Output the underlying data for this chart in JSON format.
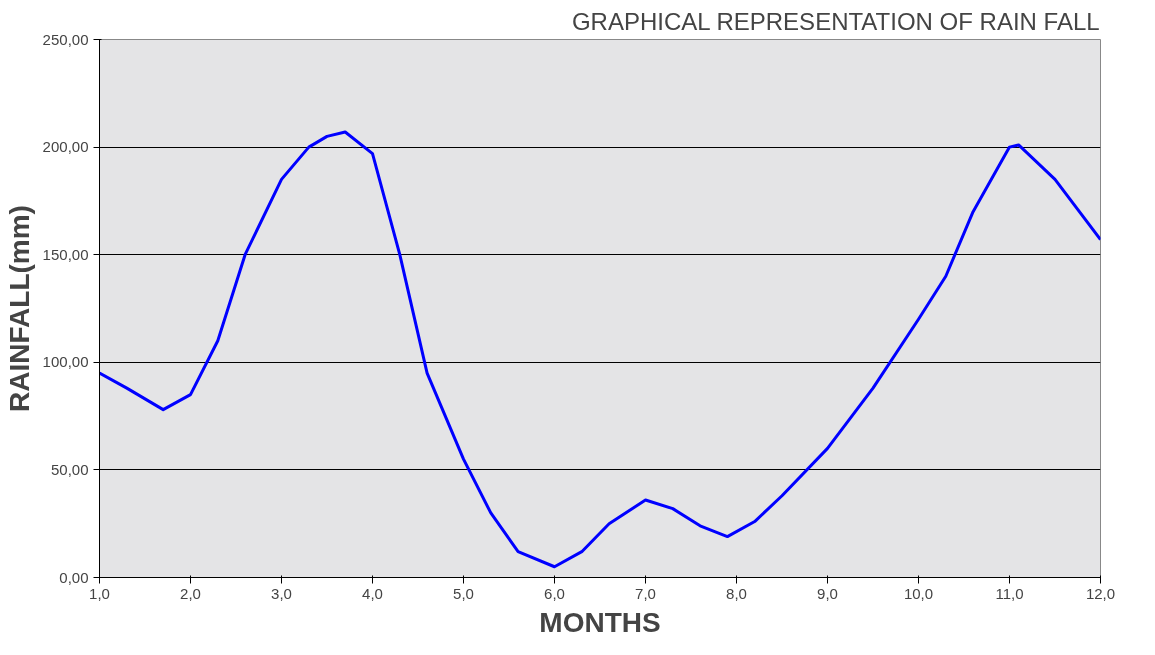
{
  "chart_data": {
    "type": "line",
    "title": "GRAPHICAL REPRESENTATION OF RAIN FALL",
    "xlabel": "MONTHS",
    "ylabel": "RAINFALL(mm)",
    "x": [
      1.0,
      1.3,
      1.7,
      2.0,
      2.3,
      2.6,
      3.0,
      3.3,
      3.5,
      3.7,
      4.0,
      4.3,
      4.6,
      5.0,
      5.3,
      5.6,
      6.0,
      6.3,
      6.6,
      7.0,
      7.3,
      7.6,
      7.9,
      8.2,
      8.5,
      9.0,
      9.5,
      10.0,
      10.3,
      10.6,
      11.0,
      11.1,
      11.5,
      12.0
    ],
    "series": [
      {
        "color": "#0000ff",
        "values": [
          95,
          88,
          78,
          85,
          110,
          150,
          185,
          200,
          205,
          207,
          197,
          150,
          95,
          55,
          30,
          12,
          5,
          12,
          25,
          36,
          32,
          24,
          19,
          26,
          38,
          60,
          88,
          120,
          140,
          170,
          200,
          201,
          185,
          157
        ]
      }
    ],
    "xlim": [
      1.0,
      12.0
    ],
    "ylim": [
      0,
      250
    ],
    "xticks": [
      {
        "value": 1,
        "label": "1,0"
      },
      {
        "value": 2,
        "label": "2,0"
      },
      {
        "value": 3,
        "label": "3,0"
      },
      {
        "value": 4,
        "label": "4,0"
      },
      {
        "value": 5,
        "label": "5,0"
      },
      {
        "value": 6,
        "label": "6,0"
      },
      {
        "value": 7,
        "label": "7,0"
      },
      {
        "value": 8,
        "label": "8,0"
      },
      {
        "value": 9,
        "label": "9,0"
      },
      {
        "value": 10,
        "label": "10,0"
      },
      {
        "value": 11,
        "label": "11,0"
      },
      {
        "value": 12,
        "label": "12,0"
      }
    ],
    "yticks": [
      {
        "value": 0,
        "label": "0,00"
      },
      {
        "value": 50,
        "label": "50,00"
      },
      {
        "value": 100,
        "label": "100,00"
      },
      {
        "value": 150,
        "label": "150,00"
      },
      {
        "value": 200,
        "label": "200,00"
      },
      {
        "value": 250,
        "label": "250,00"
      }
    ],
    "grid": "y",
    "marker": "none",
    "line_style": "solid"
  }
}
